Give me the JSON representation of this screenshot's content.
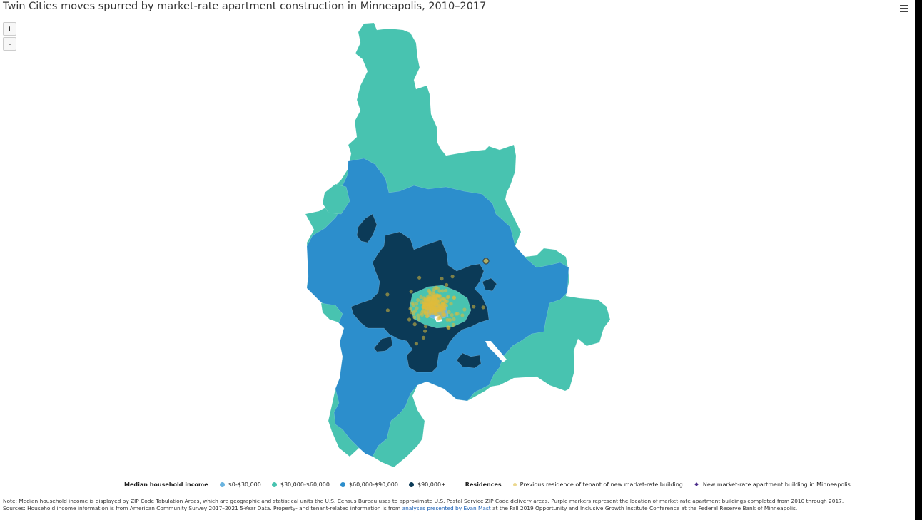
{
  "title": "Twin Cities moves spurred by market-rate apartment construction in Minneapolis, 2010–2017",
  "zoom": {
    "in_label": "+",
    "out_label": "-"
  },
  "colors": {
    "inc_low": "#6ab4e0",
    "inc_30_60": "#48c3b0",
    "inc_60_90": "#2c8ecc",
    "inc_90": "#0b3a57",
    "residence": "#dfbb3c",
    "building": "#4b2c8a"
  },
  "legend": {
    "income_title": "Median household income",
    "income_items": [
      {
        "label": "$0-$30,000",
        "color": "#6ab4e0"
      },
      {
        "label": "$30,000-$60,000",
        "color": "#48c3b0"
      },
      {
        "label": "$60,000-$90,000",
        "color": "#2c8ecc"
      },
      {
        "label": "$90,000+",
        "color": "#0b3a57"
      }
    ],
    "residences_title": "Residences",
    "residence_label": "Previous residence of tenant of new market-rate building",
    "building_label": "New market-rate apartment building in Minneapolis"
  },
  "notes": {
    "line1": "Note: Median household income is displayed by ZIP Code Tabulation Areas, which are geographic and statistical units the U.S. Census Bureau uses to approximate U.S. Postal Service ZIP Code delivery areas. Purple markers represent the location of market-rate apartment buildings completed from 2010 through 2017.",
    "line2_pre": "Sources: Household income information is from American Community Survey 2017–2021 5-Year Data. Property- and tenant-related information is from ",
    "line2_link": "analyses presented by Evan Mast",
    "line2_post": " at the Fall 2019 Opportunity and Inclusive Growth Institute Conference at the Federal Reserve Bank of Minneapolis."
  }
}
